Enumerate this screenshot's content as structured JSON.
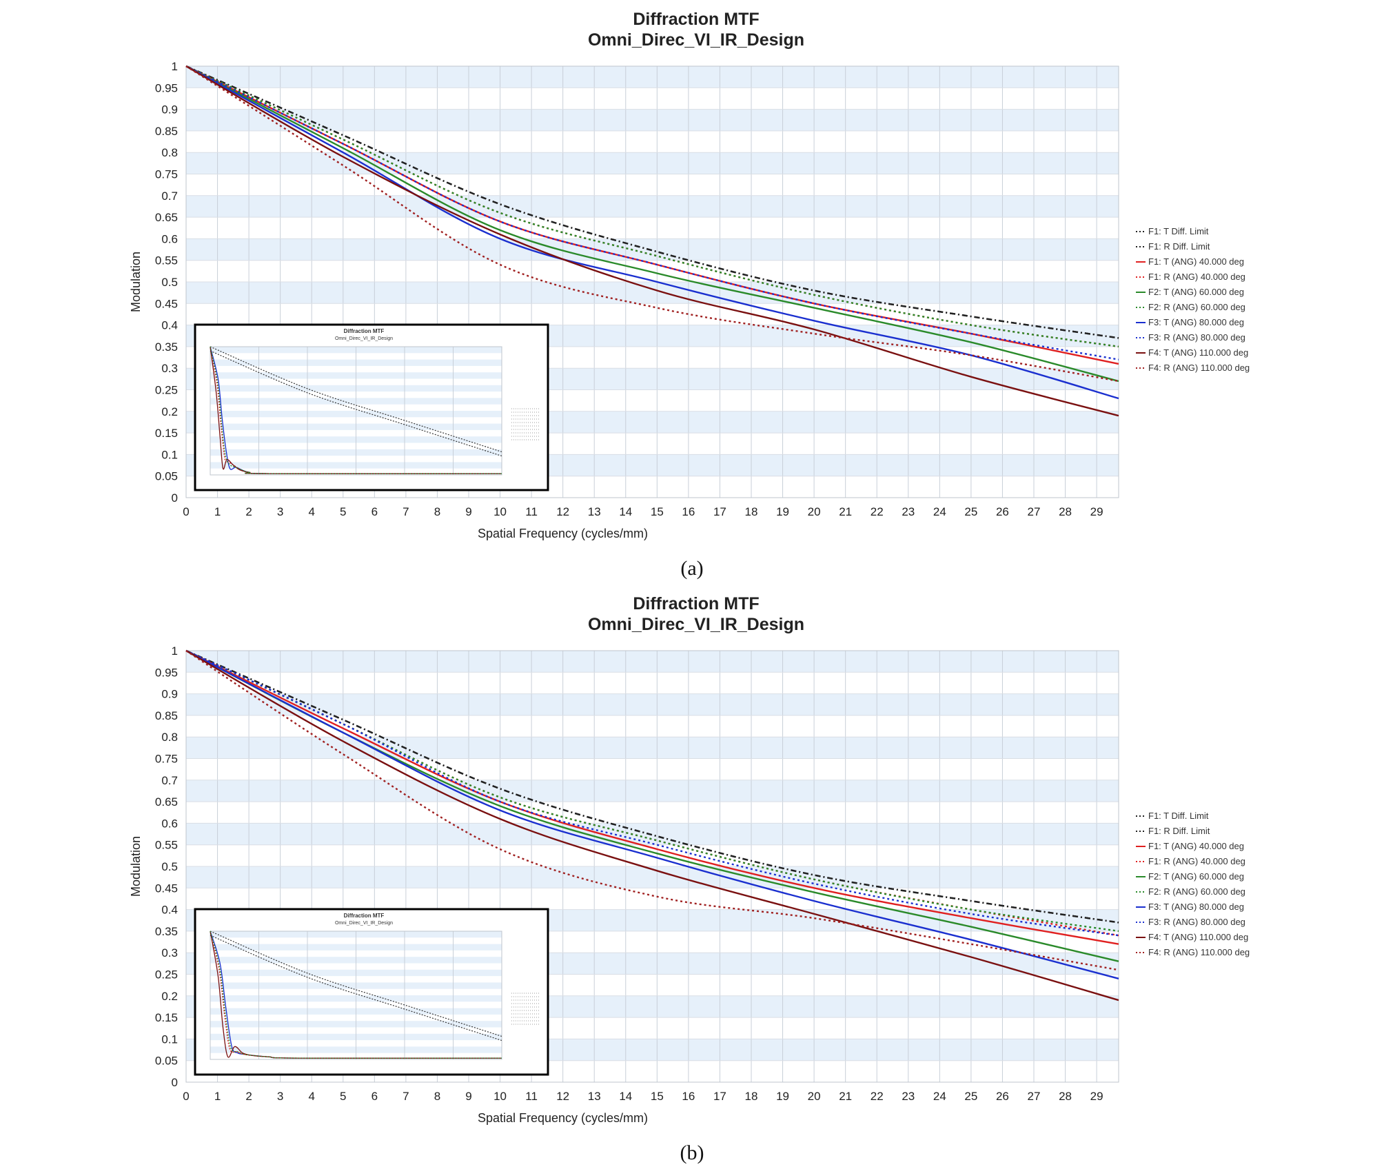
{
  "chart_data": [
    {
      "id": "a",
      "type": "line",
      "caption": "(a)",
      "title": "Diffraction MTF",
      "subtitle": "Omni_Direc_VI_IR_Design",
      "xlabel": "Spatial Frequency (cycles/mm)",
      "ylabel": "Modulation",
      "xlim": [
        0,
        29.7
      ],
      "ylim": [
        0,
        1
      ],
      "xticks": [
        0,
        1,
        2,
        3,
        4,
        5,
        6,
        7,
        8,
        9,
        10,
        11,
        12,
        13,
        14,
        15,
        16,
        17,
        18,
        19,
        20,
        21,
        22,
        23,
        24,
        25,
        26,
        27,
        28,
        29
      ],
      "yticks": [
        0,
        0.05,
        0.1,
        0.15,
        0.2,
        0.25,
        0.3,
        0.35,
        0.4,
        0.45,
        0.5,
        0.55,
        0.6,
        0.65,
        0.7,
        0.75,
        0.8,
        0.85,
        0.9,
        0.95,
        1
      ],
      "ytick_labels": [
        "0",
        "0.05",
        "0.1",
        "0.15",
        "0.2",
        "0.25",
        "0.3",
        "0.35",
        "0.4",
        "0.45",
        "0.5",
        "0.55",
        "0.6",
        "0.65",
        "0.7",
        "0.75",
        "0.8",
        "0.85",
        "0.9",
        "0.95",
        "1"
      ],
      "grid": true,
      "legend_position": "right",
      "series": [
        {
          "name": "F1: T Diff. Limit",
          "color": "#222222",
          "dash": "dashdot",
          "x": [
            0,
            5,
            10,
            15,
            20,
            25,
            29.7
          ],
          "y": [
            1,
            0.84,
            0.68,
            0.57,
            0.48,
            0.42,
            0.37
          ]
        },
        {
          "name": "F1: R Diff. Limit",
          "color": "#222222",
          "dash": "dashdot",
          "x": [
            0,
            5,
            10,
            15,
            20,
            25,
            29.7
          ],
          "y": [
            1,
            0.84,
            0.68,
            0.57,
            0.48,
            0.42,
            0.37
          ]
        },
        {
          "name": "F1: T (ANG) 40.000 deg",
          "color": "#e02020",
          "dash": "solid",
          "x": [
            0,
            5,
            10,
            15,
            20,
            25,
            29.7
          ],
          "y": [
            1,
            0.82,
            0.64,
            0.54,
            0.45,
            0.38,
            0.31
          ]
        },
        {
          "name": "F1: R (ANG) 40.000 deg",
          "color": "#e02020",
          "dash": "dot",
          "x": [
            0,
            5,
            10,
            15,
            20,
            25,
            29.7
          ],
          "y": [
            1,
            0.83,
            0.66,
            0.56,
            0.47,
            0.4,
            0.35
          ]
        },
        {
          "name": "F2: T (ANG) 60.000 deg",
          "color": "#2a8a2a",
          "dash": "solid",
          "x": [
            0,
            5,
            10,
            15,
            20,
            25,
            29.7
          ],
          "y": [
            1,
            0.81,
            0.62,
            0.52,
            0.44,
            0.36,
            0.27
          ]
        },
        {
          "name": "F2: R (ANG) 60.000 deg",
          "color": "#2a8a2a",
          "dash": "dot",
          "x": [
            0,
            5,
            10,
            15,
            20,
            25,
            29.7
          ],
          "y": [
            1,
            0.83,
            0.66,
            0.56,
            0.47,
            0.4,
            0.35
          ]
        },
        {
          "name": "F3: T (ANG) 80.000 deg",
          "color": "#1a2fcf",
          "dash": "solid",
          "x": [
            0,
            5,
            10,
            15,
            20,
            25,
            29.7
          ],
          "y": [
            1,
            0.8,
            0.6,
            0.5,
            0.41,
            0.33,
            0.23
          ]
        },
        {
          "name": "F3: R (ANG) 80.000 deg",
          "color": "#1a2fcf",
          "dash": "dot",
          "x": [
            0,
            5,
            10,
            15,
            20,
            25,
            29.7
          ],
          "y": [
            1,
            0.82,
            0.64,
            0.54,
            0.45,
            0.38,
            0.32
          ]
        },
        {
          "name": "F4: T (ANG) 110.000 deg",
          "color": "#7a1010",
          "dash": "solid",
          "x": [
            0,
            5,
            10,
            15,
            20,
            25,
            29.7
          ],
          "y": [
            1,
            0.79,
            0.61,
            0.48,
            0.39,
            0.28,
            0.19
          ]
        },
        {
          "name": "F4: R (ANG) 110.000 deg",
          "color": "#a02020",
          "dash": "dot",
          "x": [
            0,
            5,
            10,
            15,
            20,
            25,
            29.7
          ],
          "y": [
            1,
            0.77,
            0.54,
            0.44,
            0.38,
            0.33,
            0.27
          ]
        }
      ],
      "inset": {
        "title": "Diffraction MTF",
        "subtitle": "Omni_Direc_VI_IR_Design",
        "xlim": [
          0,
          29.7
        ],
        "diff_limit_x": [
          0,
          10,
          20,
          29.7
        ],
        "diff_limit_y": [
          1,
          0.67,
          0.42,
          0.18
        ],
        "fast_curves": [
          {
            "color": "#1a2fcf",
            "x": [
              0,
              0.8,
              1.2,
              1.6,
              2.0,
              2.6,
              3.2,
              4,
              6,
              29.7
            ],
            "y": [
              1,
              0.75,
              0.45,
              0.2,
              0.05,
              0.06,
              0.04,
              0.02,
              0.01,
              0.01
            ]
          },
          {
            "color": "#e02020",
            "x": [
              0,
              0.7,
              1.1,
              1.5,
              1.9,
              2.5,
              3.1,
              4,
              6,
              29.7
            ],
            "y": [
              1,
              0.7,
              0.38,
              0.12,
              0.1,
              0.07,
              0.04,
              0.02,
              0.01,
              0.01
            ]
          },
          {
            "color": "#7a1010",
            "x": [
              0,
              0.6,
              1.0,
              1.3,
              1.7,
              2.3,
              3.0,
              4,
              6,
              29.7
            ],
            "y": [
              1,
              0.65,
              0.3,
              0.05,
              0.12,
              0.08,
              0.04,
              0.02,
              0.01,
              0.01
            ]
          },
          {
            "color": "#2a8a2a",
            "x": [
              0,
              0.75,
              1.15,
              1.55,
              2.0,
              2.6,
              3.2,
              4,
              6,
              29.7
            ],
            "y": [
              1,
              0.72,
              0.4,
              0.15,
              0.08,
              0.06,
              0.04,
              0.02,
              0.01,
              0.01
            ]
          }
        ]
      }
    },
    {
      "id": "b",
      "type": "line",
      "caption": "(b)",
      "title": "Diffraction MTF",
      "subtitle": "Omni_Direc_VI_IR_Design",
      "xlabel": "Spatial Frequency (cycles/mm)",
      "ylabel": "Modulation",
      "xlim": [
        0,
        29.7
      ],
      "ylim": [
        0,
        1
      ],
      "xticks": [
        0,
        1,
        2,
        3,
        4,
        5,
        6,
        7,
        8,
        9,
        10,
        11,
        12,
        13,
        14,
        15,
        16,
        17,
        18,
        19,
        20,
        21,
        22,
        23,
        24,
        25,
        26,
        27,
        28,
        29
      ],
      "yticks": [
        0,
        0.05,
        0.1,
        0.15,
        0.2,
        0.25,
        0.3,
        0.35,
        0.4,
        0.45,
        0.5,
        0.55,
        0.6,
        0.65,
        0.7,
        0.75,
        0.8,
        0.85,
        0.9,
        0.95,
        1
      ],
      "ytick_labels": [
        "0",
        "0.05",
        "0.1",
        "0.15",
        "0.2",
        "0.25",
        "0.3",
        "0.35",
        "0.4",
        "0.45",
        "0.5",
        "0.55",
        "0.6",
        "0.65",
        "0.7",
        "0.75",
        "0.8",
        "0.85",
        "0.9",
        "0.95",
        "1"
      ],
      "grid": true,
      "legend_position": "right",
      "series": [
        {
          "name": "F1: T Diff. Limit",
          "color": "#222222",
          "dash": "dashdot",
          "x": [
            0,
            5,
            10,
            15,
            20,
            25,
            29.7
          ],
          "y": [
            1,
            0.84,
            0.68,
            0.57,
            0.48,
            0.42,
            0.37
          ]
        },
        {
          "name": "F1: R Diff. Limit",
          "color": "#222222",
          "dash": "dashdot",
          "x": [
            0,
            5,
            10,
            15,
            20,
            25,
            29.7
          ],
          "y": [
            1,
            0.84,
            0.68,
            0.57,
            0.48,
            0.42,
            0.37
          ]
        },
        {
          "name": "F1: T (ANG) 40.000 deg",
          "color": "#e02020",
          "dash": "solid",
          "x": [
            0,
            5,
            10,
            15,
            20,
            25,
            29.7
          ],
          "y": [
            1,
            0.82,
            0.65,
            0.54,
            0.45,
            0.38,
            0.32
          ]
        },
        {
          "name": "F1: R (ANG) 40.000 deg",
          "color": "#e02020",
          "dash": "dot",
          "x": [
            0,
            5,
            10,
            15,
            20,
            25,
            29.7
          ],
          "y": [
            1,
            0.83,
            0.66,
            0.56,
            0.47,
            0.4,
            0.34
          ]
        },
        {
          "name": "F2: T (ANG) 60.000 deg",
          "color": "#2a8a2a",
          "dash": "solid",
          "x": [
            0,
            5,
            10,
            15,
            20,
            25,
            29.7
          ],
          "y": [
            1,
            0.81,
            0.64,
            0.53,
            0.44,
            0.36,
            0.28
          ]
        },
        {
          "name": "F2: R (ANG) 60.000 deg",
          "color": "#2a8a2a",
          "dash": "dot",
          "x": [
            0,
            5,
            10,
            15,
            20,
            25,
            29.7
          ],
          "y": [
            1,
            0.83,
            0.66,
            0.56,
            0.47,
            0.4,
            0.35
          ]
        },
        {
          "name": "F3: T (ANG) 80.000 deg",
          "color": "#1a2fcf",
          "dash": "solid",
          "x": [
            0,
            5,
            10,
            15,
            20,
            25,
            29.7
          ],
          "y": [
            1,
            0.81,
            0.63,
            0.52,
            0.42,
            0.33,
            0.24
          ]
        },
        {
          "name": "F3: R (ANG) 80.000 deg",
          "color": "#1a2fcf",
          "dash": "dot",
          "x": [
            0,
            5,
            10,
            15,
            20,
            25,
            29.7
          ],
          "y": [
            1,
            0.83,
            0.65,
            0.55,
            0.46,
            0.39,
            0.34
          ]
        },
        {
          "name": "F4: T (ANG) 110.000 deg",
          "color": "#7a1010",
          "dash": "solid",
          "x": [
            0,
            5,
            10,
            15,
            20,
            25,
            29.7
          ],
          "y": [
            1,
            0.79,
            0.61,
            0.49,
            0.39,
            0.29,
            0.19
          ]
        },
        {
          "name": "F4: R (ANG) 110.000 deg",
          "color": "#a02020",
          "dash": "dot",
          "x": [
            0,
            5,
            10,
            15,
            20,
            25,
            29.7
          ],
          "y": [
            1,
            0.76,
            0.54,
            0.43,
            0.38,
            0.32,
            0.26
          ]
        }
      ],
      "inset": {
        "title": "Diffraction MTF",
        "subtitle": "Omni_Direc_VI_IR_Design",
        "xlim": [
          0,
          29.7
        ],
        "diff_limit_x": [
          0,
          10,
          20,
          29.7
        ],
        "diff_limit_y": [
          1,
          0.67,
          0.42,
          0.18
        ],
        "fast_curves": [
          {
            "color": "#1a2fcf",
            "x": [
              0,
              1,
              1.6,
              2.2,
              2.8,
              3.5,
              4.5,
              6,
              9,
              29.7
            ],
            "y": [
              1,
              0.75,
              0.4,
              0.1,
              0.05,
              0.04,
              0.03,
              0.02,
              0.01,
              0.01
            ]
          },
          {
            "color": "#e02020",
            "x": [
              0,
              0.9,
              1.5,
              2.0,
              2.7,
              3.4,
              4.4,
              6,
              9,
              29.7
            ],
            "y": [
              1,
              0.7,
              0.32,
              0.08,
              0.06,
              0.04,
              0.03,
              0.02,
              0.01,
              0.01
            ]
          },
          {
            "color": "#7a1010",
            "x": [
              0,
              0.8,
              1.3,
              1.8,
              2.5,
              3.3,
              4.3,
              6,
              9,
              29.7
            ],
            "y": [
              1,
              0.65,
              0.25,
              0.02,
              0.1,
              0.05,
              0.03,
              0.02,
              0.01,
              0.01
            ]
          },
          {
            "color": "#2a8a2a",
            "x": [
              0,
              0.95,
              1.55,
              2.1,
              2.8,
              3.5,
              4.5,
              6,
              9,
              29.7
            ],
            "y": [
              1,
              0.72,
              0.35,
              0.09,
              0.06,
              0.04,
              0.03,
              0.02,
              0.01,
              0.01
            ]
          }
        ]
      }
    }
  ]
}
